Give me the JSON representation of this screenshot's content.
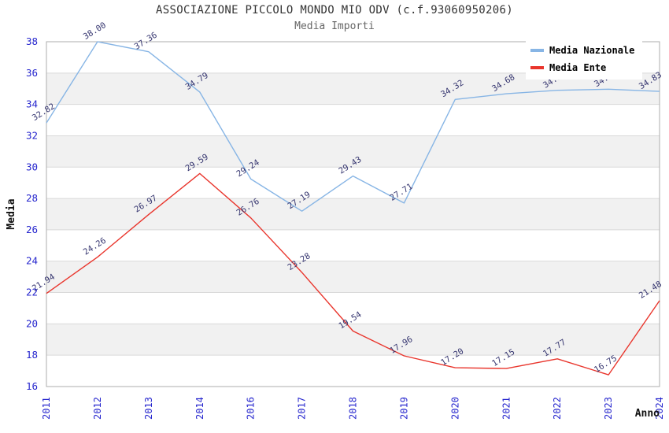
{
  "header": {
    "title": "ASSOCIAZIONE PICCOLO MONDO MIO ODV (c.f.93060950206)",
    "subtitle": "Media Importi"
  },
  "chart_data": {
    "type": "line",
    "title": "ASSOCIAZIONE PICCOLO MONDO MIO ODV (c.f.93060950206)",
    "subtitle": "Media Importi",
    "categories": [
      "2011",
      "2012",
      "2013",
      "2014",
      "2016",
      "2017",
      "2018",
      "2019",
      "2020",
      "2021",
      "2022",
      "2023",
      "2024"
    ],
    "series": [
      {
        "name": "Media Nazionale",
        "color": "#87B5E5",
        "values": [
          32.82,
          38.0,
          37.36,
          34.79,
          29.24,
          27.19,
          29.43,
          27.71,
          34.32,
          34.68,
          34.9,
          34.97,
          34.83
        ],
        "point_labels": [
          "32.82",
          "38.00",
          "37.36",
          "34.79",
          "29.24",
          "27.19",
          "29.43",
          "27.71",
          "34.32",
          "34.68",
          "34.90",
          "34.97",
          "34.83"
        ]
      },
      {
        "name": "Media Ente",
        "color": "#E9352C",
        "values": [
          21.94,
          24.26,
          26.97,
          29.59,
          26.76,
          23.28,
          19.54,
          17.96,
          17.2,
          17.15,
          17.77,
          16.75,
          21.48
        ],
        "point_labels": [
          "21.94",
          "24.26",
          "26.97",
          "29.59",
          "26.76",
          "23.28",
          "19.54",
          "17.96",
          "17.20",
          "17.15",
          "17.77",
          "16.75",
          "21.48"
        ]
      }
    ],
    "xlabel": "Anno",
    "ylabel": "Media",
    "ylim": [
      16,
      38
    ],
    "ytick_step": 2,
    "grid": "horizontal-bands",
    "legend_position": "top-right",
    "colors": {
      "tick_label": "#2727CE",
      "data_label": "#363670",
      "band": "#F1F1F1",
      "grid_line": "#D9D9D9",
      "plot_border": "#ADADAD",
      "title": "#333333",
      "subtitle": "#666666"
    }
  }
}
